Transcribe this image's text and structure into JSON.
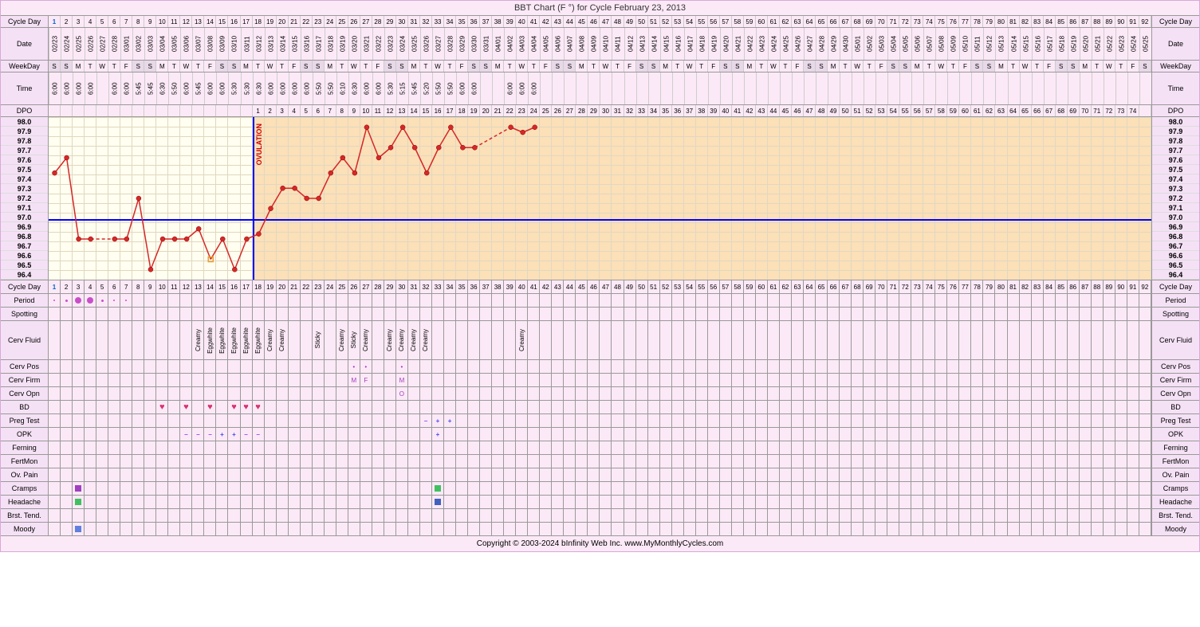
{
  "title": "BBT Chart (F °) for Cycle February 23, 2013",
  "footer": "Copyright © 2003-2024 bInfinity Web Inc.    www.MyMonthlyCycles.com",
  "labels": {
    "cycleDay": "Cycle Day",
    "date": "Date",
    "weekday": "WeekDay",
    "time": "Time",
    "dpo": "DPO",
    "period": "Period",
    "spotting": "Spotting",
    "cervFluid": "Cerv Fluid",
    "cervPos": "Cerv Pos",
    "cervFirm": "Cerv Firm",
    "cervOpn": "Cerv Opn",
    "bd": "BD",
    "pregTest": "Preg Test",
    "opk": "OPK",
    "ferning": "Ferning",
    "fertMon": "FertMon",
    "ovPain": "Ov. Pain",
    "cramps": "Cramps",
    "headache": "Headache",
    "brstTend": "Brst. Tend.",
    "moody": "Moody",
    "ovulation": "OVULATION"
  },
  "numDays": 92,
  "cycleDays": [
    1,
    2,
    3,
    4,
    5,
    6,
    7,
    8,
    9,
    10,
    11,
    12,
    13,
    14,
    15,
    16,
    17,
    18,
    19,
    20,
    21,
    22,
    23,
    24,
    25,
    26,
    27,
    28,
    29,
    30,
    31,
    32,
    33,
    34,
    35,
    36,
    37,
    38,
    39,
    40,
    41,
    42,
    43,
    44,
    45,
    46,
    47,
    48,
    49,
    50,
    51,
    52,
    53,
    54,
    55,
    56,
    57,
    58,
    59,
    60,
    61,
    62,
    63,
    64,
    65,
    66,
    67,
    68,
    69,
    70,
    71,
    72,
    73,
    74,
    75,
    76,
    77,
    78,
    79,
    80,
    81,
    82,
    83,
    84,
    85,
    86,
    87,
    88,
    89,
    90,
    91,
    92
  ],
  "dates": [
    "02/23",
    "02/24",
    "02/25",
    "02/26",
    "02/27",
    "02/28",
    "03/01",
    "03/02",
    "03/03",
    "03/04",
    "03/05",
    "03/06",
    "03/07",
    "03/08",
    "03/09",
    "03/10",
    "03/11",
    "03/12",
    "03/13",
    "03/14",
    "03/15",
    "03/16",
    "03/17",
    "03/18",
    "03/19",
    "03/20",
    "03/21",
    "03/22",
    "03/23",
    "03/24",
    "03/25",
    "03/26",
    "03/27",
    "03/28",
    "03/29",
    "03/30",
    "03/31",
    "04/01",
    "04/02",
    "04/03",
    "04/04",
    "04/05",
    "04/06",
    "04/07",
    "04/08",
    "04/09",
    "04/10",
    "04/11",
    "04/12",
    "04/13",
    "04/14",
    "04/15",
    "04/16",
    "04/17",
    "04/18",
    "04/19",
    "04/20",
    "04/21",
    "04/22",
    "04/23",
    "04/24",
    "04/25",
    "04/26",
    "04/27",
    "04/28",
    "04/29",
    "04/30",
    "05/01",
    "05/02",
    "05/03",
    "05/04",
    "05/05",
    "05/06",
    "05/07",
    "05/08",
    "05/09",
    "05/10",
    "05/11",
    "05/12",
    "05/13",
    "05/14",
    "05/15",
    "05/16",
    "05/17",
    "05/18",
    "05/19",
    "05/20",
    "05/21",
    "05/22",
    "05/23",
    "05/24",
    "05/25"
  ],
  "weekdays": [
    "S",
    "S",
    "M",
    "T",
    "W",
    "T",
    "F",
    "S",
    "S",
    "M",
    "T",
    "W",
    "T",
    "F",
    "S",
    "S",
    "M",
    "T",
    "W",
    "T",
    "F",
    "S",
    "S",
    "M",
    "T",
    "W",
    "T",
    "F",
    "S",
    "S",
    "M",
    "T",
    "W",
    "T",
    "F",
    "S",
    "S",
    "M",
    "T",
    "W",
    "T",
    "F",
    "S",
    "S",
    "M",
    "T",
    "W",
    "T",
    "F",
    "S",
    "S",
    "M",
    "T",
    "W",
    "T",
    "F",
    "S",
    "S",
    "M",
    "T",
    "W",
    "T",
    "F",
    "S",
    "S",
    "M",
    "T",
    "W",
    "T",
    "F",
    "S",
    "S",
    "M",
    "T",
    "W",
    "T",
    "F",
    "S",
    "S",
    "M",
    "T",
    "W",
    "T",
    "F",
    "S",
    "S",
    "M",
    "T",
    "W",
    "T",
    "F",
    "S"
  ],
  "times": [
    "6:00",
    "6:00",
    "6:00",
    "6:00",
    "",
    "6:00",
    "6:00",
    "5:45",
    "5:45",
    "6:30",
    "5:50",
    "6:00",
    "5:45",
    "6:00",
    "6:00",
    "5:30",
    "5:30",
    "6:30",
    "6:00",
    "6:00",
    "6:00",
    "6:00",
    "5:50",
    "5:50",
    "6:10",
    "6:30",
    "6:00",
    "6:00",
    "5:30",
    "5:15",
    "5:45",
    "5:20",
    "5:50",
    "5:50",
    "6:00",
    "6:00",
    "",
    "",
    "6:00",
    "6:00",
    "6:00",
    "",
    "",
    "",
    "",
    "",
    "",
    "",
    "",
    "",
    "",
    "",
    "",
    "",
    "",
    "",
    "",
    "",
    "",
    "",
    "",
    "",
    "",
    "",
    "",
    "",
    "",
    "",
    "",
    "",
    "",
    "",
    "",
    "",
    "",
    "",
    "",
    "",
    "",
    "",
    "",
    "",
    "",
    "",
    "",
    "",
    "",
    "",
    "",
    "",
    "",
    ""
  ],
  "dpo": [
    "",
    "",
    "",
    "",
    "",
    "",
    "",
    "",
    "",
    "",
    "",
    "",
    "",
    "",
    "",
    "",
    "",
    "1",
    "2",
    "3",
    "4",
    "5",
    "6",
    "7",
    "8",
    "9",
    "10",
    "11",
    "12",
    "13",
    "14",
    "15",
    "16",
    "17",
    "18",
    "19",
    "20",
    "21",
    "22",
    "23",
    "24",
    "25",
    "26",
    "27",
    "28",
    "29",
    "30",
    "31",
    "32",
    "33",
    "34",
    "35",
    "36",
    "37",
    "38",
    "39",
    "40",
    "41",
    "42",
    "43",
    "44",
    "45",
    "46",
    "47",
    "48",
    "49",
    "50",
    "51",
    "52",
    "53",
    "54",
    "55",
    "56",
    "57",
    "58",
    "59",
    "60",
    "61",
    "62",
    "63",
    "64",
    "65",
    "66",
    "67",
    "68",
    "69",
    "70",
    "71",
    "72",
    "73",
    "74",
    ""
  ],
  "tempScale": {
    "min": 96.4,
    "max": 98.0,
    "step": 0.1,
    "labels": [
      "98.0",
      "97.9",
      "97.8",
      "97.7",
      "97.6",
      "97.5",
      "97.4",
      "97.3",
      "97.2",
      "97.1",
      "97.0",
      "96.9",
      "96.8",
      "96.7",
      "96.6",
      "96.5",
      "96.4"
    ]
  },
  "coverline": 97.0,
  "ovulationDay": 18,
  "lutealStart": 18,
  "temps": [
    {
      "day": 1,
      "temp": 97.45
    },
    {
      "day": 2,
      "temp": 97.6
    },
    {
      "day": 3,
      "temp": 96.8
    },
    {
      "day": 4,
      "temp": 96.8
    },
    {
      "day": 6,
      "temp": 96.8
    },
    {
      "day": 7,
      "temp": 96.8
    },
    {
      "day": 8,
      "temp": 97.2
    },
    {
      "day": 9,
      "temp": 96.5
    },
    {
      "day": 10,
      "temp": 96.8
    },
    {
      "day": 11,
      "temp": 96.8
    },
    {
      "day": 12,
      "temp": 96.8
    },
    {
      "day": 13,
      "temp": 96.9
    },
    {
      "day": 14,
      "temp": 96.6,
      "open": true
    },
    {
      "day": 15,
      "temp": 96.8
    },
    {
      "day": 16,
      "temp": 96.5
    },
    {
      "day": 17,
      "temp": 96.8
    },
    {
      "day": 18,
      "temp": 96.85
    },
    {
      "day": 19,
      "temp": 97.1
    },
    {
      "day": 20,
      "temp": 97.3
    },
    {
      "day": 21,
      "temp": 97.3
    },
    {
      "day": 22,
      "temp": 97.2
    },
    {
      "day": 23,
      "temp": 97.2
    },
    {
      "day": 24,
      "temp": 97.45
    },
    {
      "day": 25,
      "temp": 97.6
    },
    {
      "day": 26,
      "temp": 97.45
    },
    {
      "day": 27,
      "temp": 97.9
    },
    {
      "day": 28,
      "temp": 97.6
    },
    {
      "day": 29,
      "temp": 97.7
    },
    {
      "day": 30,
      "temp": 97.9
    },
    {
      "day": 31,
      "temp": 97.7
    },
    {
      "day": 32,
      "temp": 97.45
    },
    {
      "day": 33,
      "temp": 97.7
    },
    {
      "day": 34,
      "temp": 97.9
    },
    {
      "day": 35,
      "temp": 97.7
    },
    {
      "day": 36,
      "temp": 97.7
    },
    {
      "day": 39,
      "temp": 97.9
    },
    {
      "day": 40,
      "temp": 97.85
    },
    {
      "day": 41,
      "temp": 97.9
    }
  ],
  "dashedSegments": [
    [
      4,
      6
    ],
    [
      36,
      39
    ]
  ],
  "colors": {
    "bg": "#fce9f7",
    "follicular": "#fffef0",
    "luteal": "#fce0b8",
    "line": "#d62828",
    "dot": "#d62828",
    "dotFill": "#ffffff",
    "coverline": "#0000ff",
    "grid": "#e0d8c0",
    "openDot": "#e8a030"
  },
  "period": [
    {
      "day": 1,
      "size": 2,
      "color": "#c94fc9"
    },
    {
      "day": 2,
      "size": 3,
      "color": "#c94fc9"
    },
    {
      "day": 3,
      "size": 8,
      "color": "#c94fc9"
    },
    {
      "day": 4,
      "size": 8,
      "color": "#c94fc9"
    },
    {
      "day": 5,
      "size": 3,
      "color": "#c94fc9"
    },
    {
      "day": 6,
      "size": 2,
      "color": "#c94fc9"
    },
    {
      "day": 7,
      "size": 2,
      "color": "#c94fc9"
    }
  ],
  "cervFluid": {
    "13": "Creamy",
    "14": "Eggwhite",
    "15": "Eggwhite",
    "16": "Eggwhite",
    "17": "Eggwhite",
    "18": "Eggwhite",
    "19": "Creamy",
    "20": "Creamy",
    "23": "Sticky",
    "25": "Creamy",
    "26": "Sticky",
    "27": "Creamy",
    "29": "Creamy",
    "30": "Creamy",
    "31": "Creamy",
    "32": "Creamy",
    "40": "Creamy"
  },
  "cervPos": {
    "26": "•",
    "27": "•",
    "30": "•"
  },
  "cervFirm": {
    "26": "M",
    "27": "F",
    "30": "M"
  },
  "cervOpn": {
    "30": "O"
  },
  "bd": [
    10,
    12,
    14,
    16,
    17,
    18
  ],
  "pregTest": {
    "32": "−",
    "33": "+",
    "34": "+"
  },
  "opk": {
    "12": "−",
    "13": "−",
    "14": "−",
    "15": "+",
    "16": "+",
    "17": "−",
    "18": "−",
    "33": "+"
  },
  "cramps": [
    {
      "day": 3,
      "color": "#a040c0"
    },
    {
      "day": 33,
      "color": "#40c060"
    }
  ],
  "headache": [
    {
      "day": 3,
      "color": "#40c060"
    },
    {
      "day": 33,
      "color": "#4060c0"
    }
  ],
  "moody": [
    {
      "day": 3,
      "color": "#6080e0"
    }
  ]
}
